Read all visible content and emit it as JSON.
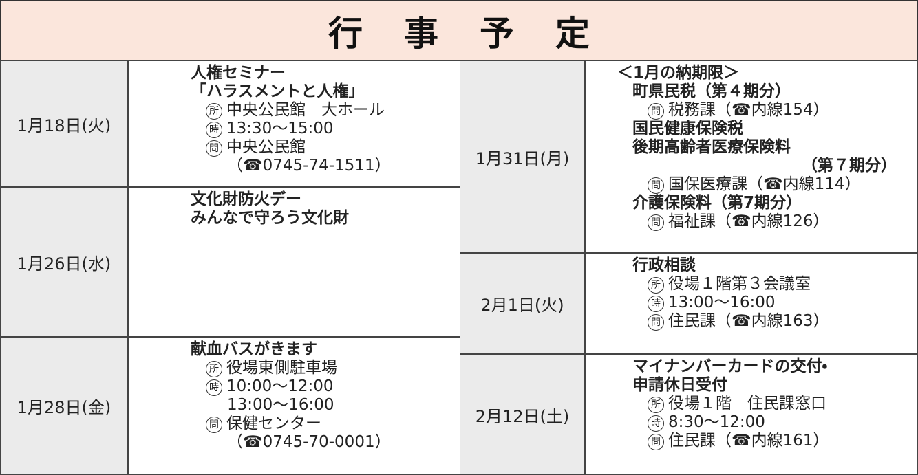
{
  "title": "行事予定",
  "left": [
    {
      "date": "1月18日(火)",
      "items": [
        {
          "title": [
            "人権セミナー",
            "「ハラスメントと人権」"
          ],
          "details": [
            {
              "mark": "所",
              "text": "中央公民館　大ホール"
            },
            {
              "mark": "時",
              "text": "13:30～15:00"
            },
            {
              "mark": "問",
              "text": "中央公民館"
            },
            {
              "text": "（☎0745-74-1511）"
            }
          ]
        }
      ]
    },
    {
      "date": "1月26日(水)",
      "items": [
        {
          "title": [
            "文化財防火デー",
            "みんなで守ろう文化財"
          ],
          "details": []
        }
      ]
    },
    {
      "date": "1月28日(金)",
      "items": [
        {
          "title": [
            "献血バスがきます"
          ],
          "details": [
            {
              "mark": "所",
              "text": "役場東側駐車場"
            },
            {
              "mark": "時",
              "text": "10:00～12:00"
            },
            {
              "text": "13:00～16:00"
            },
            {
              "mark": "問",
              "text": "保健センター"
            },
            {
              "text": "（☎0745-70-0001）"
            }
          ]
        }
      ]
    }
  ],
  "right": [
    {
      "date": "1月31日(月)",
      "heading": "＜1月の納期限＞",
      "items": [
        {
          "title": [
            "町県民税（第４期分）"
          ],
          "details": [
            {
              "mark": "問",
              "text": "税務課（☎内線154）"
            }
          ]
        },
        {
          "title": [
            "国民健康保険税",
            "後期高齢者医療保険料",
            "（第７期分）"
          ],
          "details": [
            {
              "mark": "問",
              "text": "国保医療課（☎内線114）"
            }
          ]
        },
        {
          "title": [
            "介護保険料（第7期分）"
          ],
          "details": [
            {
              "mark": "問",
              "text": "福祉課（☎内線126）"
            }
          ]
        }
      ]
    },
    {
      "date": "2月1日(火)",
      "items": [
        {
          "title": [
            "行政相談"
          ],
          "details": [
            {
              "mark": "所",
              "text": "役場１階第３会議室"
            },
            {
              "mark": "時",
              "text": "13:00～16:00"
            },
            {
              "mark": "問",
              "text": "住民課（☎内線163）"
            }
          ]
        }
      ]
    },
    {
      "date": "2月12日(土)",
      "items": [
        {
          "title": [
            "マイナンバーカードの交付・",
            "申請休日受付"
          ],
          "details": [
            {
              "mark": "所",
              "text": "役場１階　住民課窓口"
            },
            {
              "mark": "時",
              "text": "8:30～12:00"
            },
            {
              "mark": "問",
              "text": "住民課（☎内線161）"
            }
          ]
        }
      ]
    }
  ]
}
